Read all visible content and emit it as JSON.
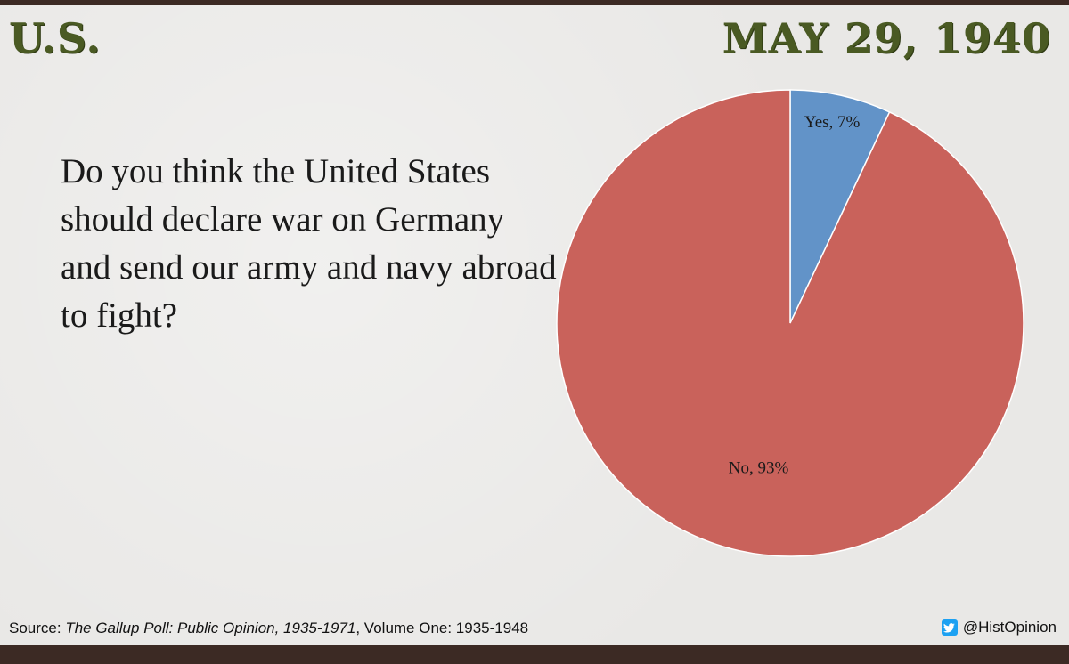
{
  "header": {
    "country": "U.S.",
    "date": "MAY 29, 1940"
  },
  "question": "Do you think the United States should declare war on Germany and send our army and navy abroad to fight?",
  "footer": {
    "source_prefix": "Source: ",
    "source_title": "The Gallup Poll: Public Opinion, 1935-1971",
    "source_suffix": ", Volume One: 1935-1948",
    "handle": "@HistOpinion",
    "handle_icon": "twitter-icon"
  },
  "chart_data": {
    "type": "pie",
    "title": "",
    "categories": [
      "Yes",
      "No"
    ],
    "values": [
      7,
      93
    ],
    "labels": [
      "Yes, 7%",
      "No, 93%"
    ],
    "colors": [
      "#6293c8",
      "#c9625b"
    ],
    "start_angle_deg": 0,
    "direction": "clockwise",
    "legend": "none"
  }
}
